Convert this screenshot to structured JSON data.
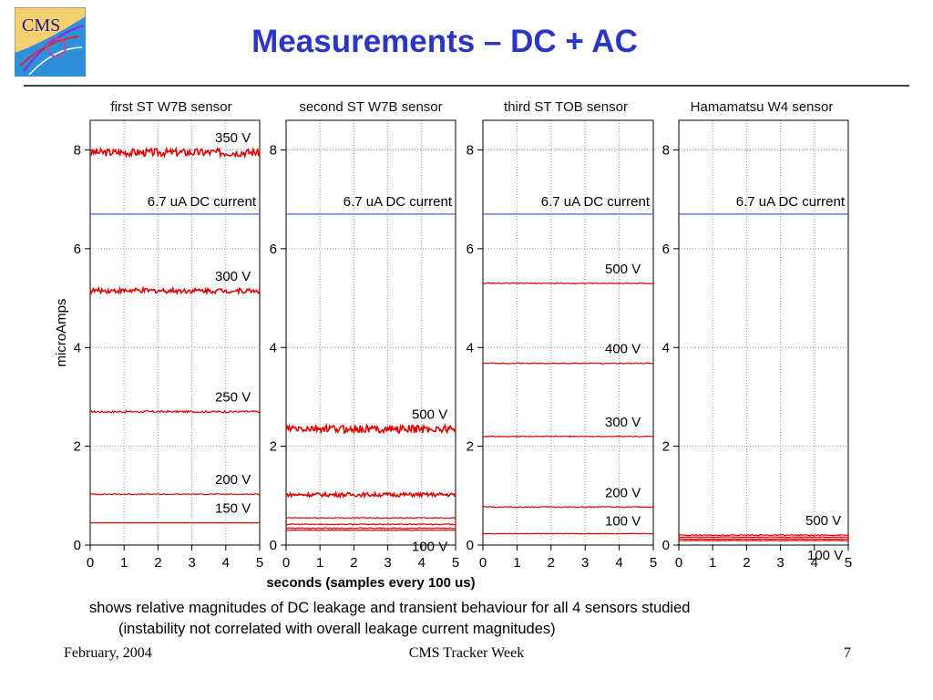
{
  "slide": {
    "title": "Measurements – DC + AC",
    "logo_text": "CMS",
    "caption_line1": "shows relative magnitudes of DC leakage and transient behaviour for all 4 sensors studied",
    "caption_line2": "(instability not correlated with overall leakage current magnitudes)",
    "footer_left": "February, 2004",
    "footer_center": "CMS Tracker Week",
    "footer_right": "7"
  },
  "colors": {
    "title": "#2b36c4",
    "trace": "#e00000",
    "threshold": "#3a4fd0",
    "grid": "#8890ee"
  },
  "chart_data": [
    {
      "type": "line",
      "title": "first ST W7B sensor",
      "xlabel": "seconds (samples every 100 us)",
      "ylabel": "microAmps",
      "xlim": [
        0,
        5
      ],
      "ylim": [
        0,
        8.6
      ],
      "xticks": [
        "0",
        "1",
        "2",
        "3",
        "4",
        "5"
      ],
      "yticks": [
        "0",
        "2",
        "4",
        "6",
        "8"
      ],
      "reference": {
        "value": 6.7,
        "label": "6.7 uA DC current"
      },
      "series": [
        {
          "name": "350 V",
          "level": 7.95,
          "noise": 0.08
        },
        {
          "name": "300 V",
          "level": 5.15,
          "noise": 0.05
        },
        {
          "name": "250 V",
          "level": 2.7,
          "noise": 0.02
        },
        {
          "name": "200 V",
          "level": 1.03,
          "noise": 0.01
        },
        {
          "name": "150 V",
          "level": 0.45,
          "noise": 0.0
        }
      ]
    },
    {
      "type": "line",
      "title": "second ST W7B sensor",
      "xlim": [
        0,
        5
      ],
      "ylim": [
        0,
        8.6
      ],
      "xticks": [
        "0",
        "1",
        "2",
        "3",
        "4",
        "5"
      ],
      "yticks": [
        "0",
        "2",
        "4",
        "6",
        "8"
      ],
      "reference": {
        "value": 6.7,
        "label": "6.7 uA DC current"
      },
      "series": [
        {
          "name": "500 V",
          "level": 2.35,
          "noise": 0.08
        },
        {
          "name": "",
          "level": 1.02,
          "noise": 0.04
        },
        {
          "name": "",
          "level": 0.55,
          "noise": 0.01
        },
        {
          "name": "",
          "level": 0.42,
          "noise": 0.01
        },
        {
          "name": "",
          "level": 0.34,
          "noise": 0.01
        },
        {
          "name": "100 V",
          "level": 0.3,
          "noise": 0.005
        }
      ]
    },
    {
      "type": "line",
      "title": "third ST TOB sensor",
      "xlim": [
        0,
        5
      ],
      "ylim": [
        0,
        8.6
      ],
      "xticks": [
        "0",
        "1",
        "2",
        "3",
        "4",
        "5"
      ],
      "yticks": [
        "0",
        "2",
        "4",
        "6",
        "8"
      ],
      "reference": {
        "value": 6.7,
        "label": "6.7 uA DC current"
      },
      "series": [
        {
          "name": "500 V",
          "level": 5.3,
          "noise": 0.01
        },
        {
          "name": "400 V",
          "level": 3.68,
          "noise": 0.01
        },
        {
          "name": "300 V",
          "level": 2.2,
          "noise": 0.01
        },
        {
          "name": "200 V",
          "level": 0.77,
          "noise": 0.01
        },
        {
          "name": "100 V",
          "level": 0.23,
          "noise": 0.005
        }
      ]
    },
    {
      "type": "line",
      "title": "Hamamatsu W4 sensor",
      "xlim": [
        0,
        5
      ],
      "ylim": [
        0,
        8.6
      ],
      "xticks": [
        "0",
        "1",
        "2",
        "3",
        "4",
        "5"
      ],
      "yticks": [
        "0",
        "2",
        "4",
        "6",
        "8"
      ],
      "reference": {
        "value": 6.7,
        "label": "6.7 uA DC current"
      },
      "series": [
        {
          "name": "500 V",
          "level": 0.2,
          "noise": 0.01
        },
        {
          "name": "",
          "level": 0.16,
          "noise": 0.005
        },
        {
          "name": "",
          "level": 0.12,
          "noise": 0.005
        },
        {
          "name": "100 V",
          "level": 0.09,
          "noise": 0.003
        }
      ]
    }
  ]
}
